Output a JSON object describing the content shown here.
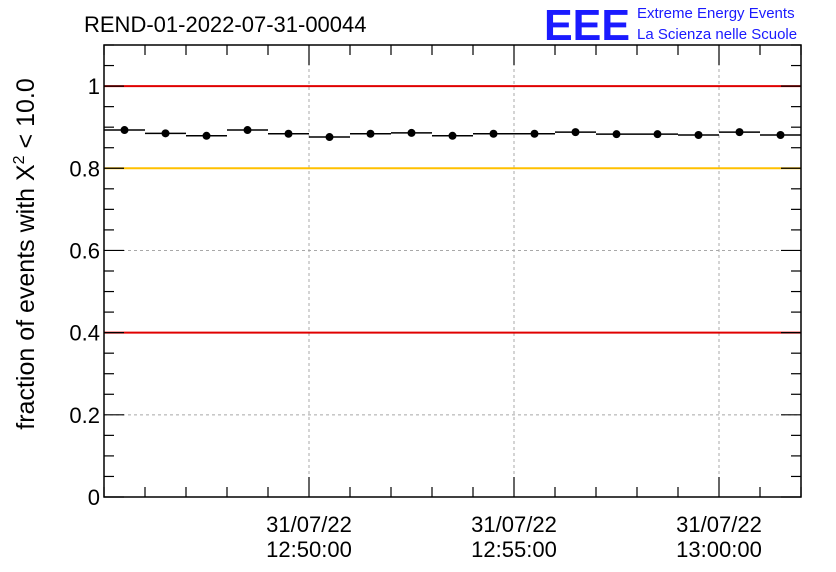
{
  "chart_data": {
    "type": "scatter",
    "title": "REND-01-2022-07-31-00044",
    "ylabel": "fraction of events with X^2 < 10.0",
    "ylabel_parts": {
      "prefix": "fraction of events with X",
      "superscript": "2",
      "suffix": " < 10.0"
    },
    "xlim": [
      "31/07/22 12:45:00",
      "31/07/22 13:02:00"
    ],
    "ylim": [
      0,
      1.1
    ],
    "yticks": [
      0,
      0.2,
      0.4,
      0.6,
      0.8,
      1
    ],
    "ytick_labels": [
      "0",
      "0.2",
      "0.4",
      "0.6",
      "0.8",
      "1"
    ],
    "xticks": [
      "31/07/22 12:50:00",
      "31/07/22 12:55:00",
      "31/07/22 13:00:00"
    ],
    "xtick_labels": [
      {
        "date": "31/07/22",
        "time": "12:50:00"
      },
      {
        "date": "31/07/22",
        "time": "12:55:00"
      },
      {
        "date": "31/07/22",
        "time": "13:00:00"
      }
    ],
    "grid": true,
    "reference_lines": [
      {
        "y": 1.0,
        "color": "#e00000"
      },
      {
        "y": 0.8,
        "color": "#ffc000"
      },
      {
        "y": 0.4,
        "color": "#e00000"
      }
    ],
    "series": [
      {
        "bin_width_minutes": 1,
        "x": [
          "12:45:30",
          "12:46:30",
          "12:47:30",
          "12:48:30",
          "12:49:30",
          "12:50:30",
          "12:51:30",
          "12:52:30",
          "12:53:30",
          "12:54:30",
          "12:55:30",
          "12:56:30",
          "12:57:30",
          "12:58:30",
          "12:59:30",
          "13:00:30",
          "13:01:30"
        ],
        "y": [
          0.893,
          0.885,
          0.879,
          0.893,
          0.884,
          0.876,
          0.884,
          0.886,
          0.879,
          0.884,
          0.884,
          0.888,
          0.883,
          0.883,
          0.881,
          0.888,
          0.881
        ],
        "color": "#000000"
      }
    ]
  },
  "logo": {
    "mark": "EEE",
    "line1": "Extreme Energy Events",
    "line2": "La Scienza nelle Scuole",
    "color": "#1a1aff"
  }
}
